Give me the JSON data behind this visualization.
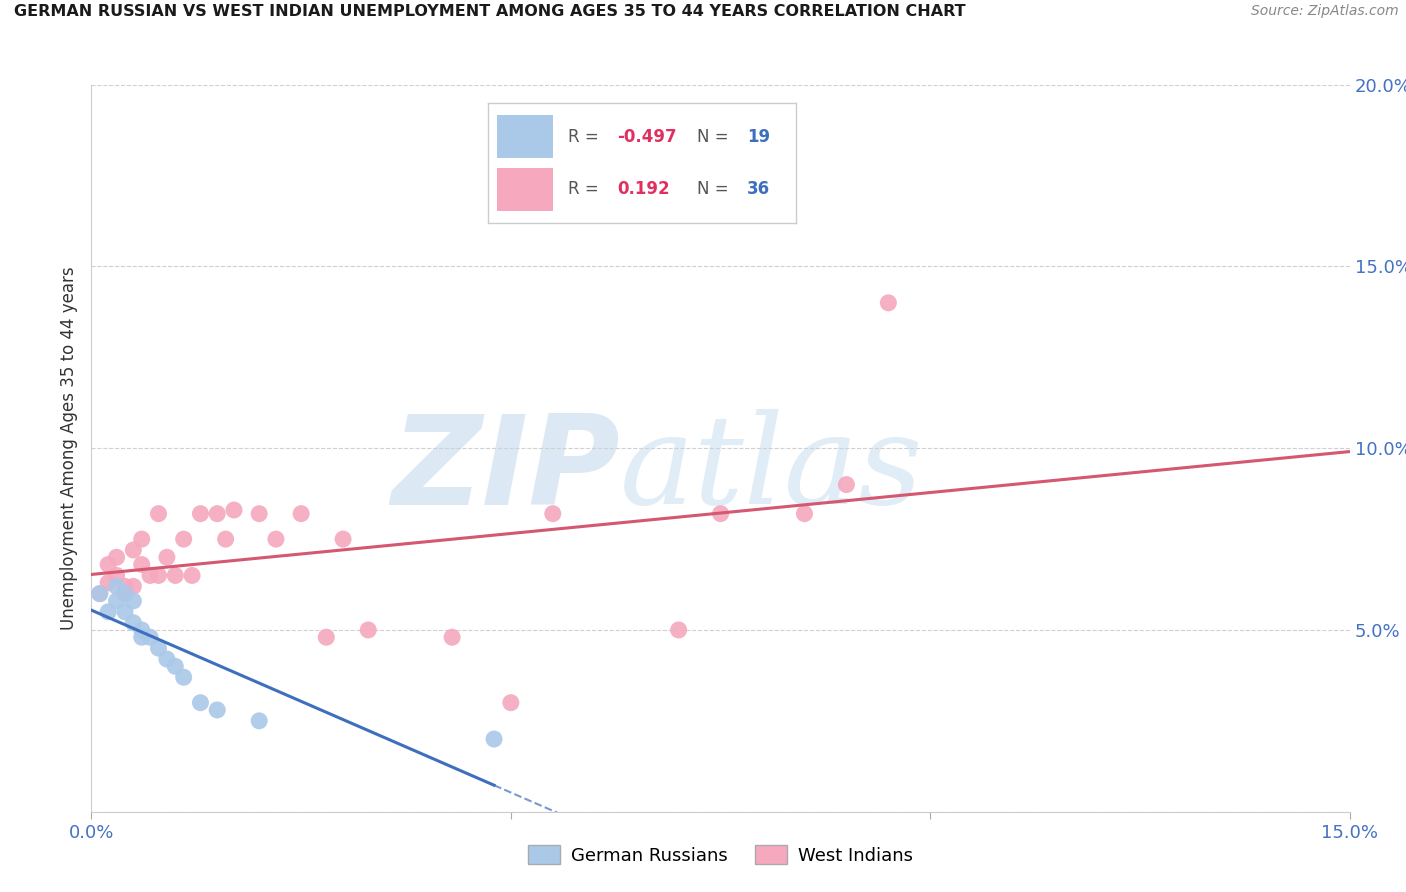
{
  "title": "GERMAN RUSSIAN VS WEST INDIAN UNEMPLOYMENT AMONG AGES 35 TO 44 YEARS CORRELATION CHART",
  "source": "Source: ZipAtlas.com",
  "ylabel": "Unemployment Among Ages 35 to 44 years",
  "xlim": [
    0.0,
    0.15
  ],
  "ylim": [
    0.0,
    0.2
  ],
  "ytick_pos": [
    0.0,
    0.05,
    0.1,
    0.15,
    0.2
  ],
  "ytick_labels": [
    "",
    "5.0%",
    "10.0%",
    "15.0%",
    "20.0%"
  ],
  "xtick_pos": [
    0.0,
    0.05,
    0.1,
    0.15
  ],
  "xtick_labels": [
    "0.0%",
    "",
    "",
    "15.0%"
  ],
  "german_russian_x": [
    0.001,
    0.002,
    0.003,
    0.003,
    0.004,
    0.004,
    0.005,
    0.005,
    0.006,
    0.006,
    0.007,
    0.008,
    0.009,
    0.01,
    0.011,
    0.013,
    0.015,
    0.02,
    0.048
  ],
  "german_russian_y": [
    0.06,
    0.055,
    0.062,
    0.058,
    0.06,
    0.055,
    0.052,
    0.058,
    0.048,
    0.05,
    0.048,
    0.045,
    0.042,
    0.04,
    0.037,
    0.03,
    0.028,
    0.025,
    0.02
  ],
  "west_indian_x": [
    0.001,
    0.002,
    0.002,
    0.003,
    0.003,
    0.004,
    0.004,
    0.005,
    0.005,
    0.006,
    0.006,
    0.007,
    0.008,
    0.008,
    0.009,
    0.01,
    0.011,
    0.012,
    0.013,
    0.015,
    0.016,
    0.017,
    0.02,
    0.022,
    0.025,
    0.028,
    0.03,
    0.033,
    0.043,
    0.05,
    0.055,
    0.07,
    0.075,
    0.085,
    0.09,
    0.095
  ],
  "west_indian_y": [
    0.06,
    0.063,
    0.068,
    0.065,
    0.07,
    0.06,
    0.062,
    0.062,
    0.072,
    0.075,
    0.068,
    0.065,
    0.082,
    0.065,
    0.07,
    0.065,
    0.075,
    0.065,
    0.082,
    0.082,
    0.075,
    0.083,
    0.082,
    0.075,
    0.082,
    0.048,
    0.075,
    0.05,
    0.048,
    0.03,
    0.082,
    0.05,
    0.082,
    0.082,
    0.09,
    0.14
  ],
  "r_german": -0.497,
  "n_german": 19,
  "r_west_indian": 0.192,
  "n_west_indian": 36,
  "german_color": "#aac8e8",
  "west_indian_color": "#f5a8be",
  "german_line_color": "#3d6fbe",
  "west_indian_line_color": "#d45870",
  "background_color": "#ffffff",
  "grid_color": "#d0d0d0",
  "axis_color": "#4472c4",
  "title_color": "#1a1a1a",
  "source_color": "#888888"
}
